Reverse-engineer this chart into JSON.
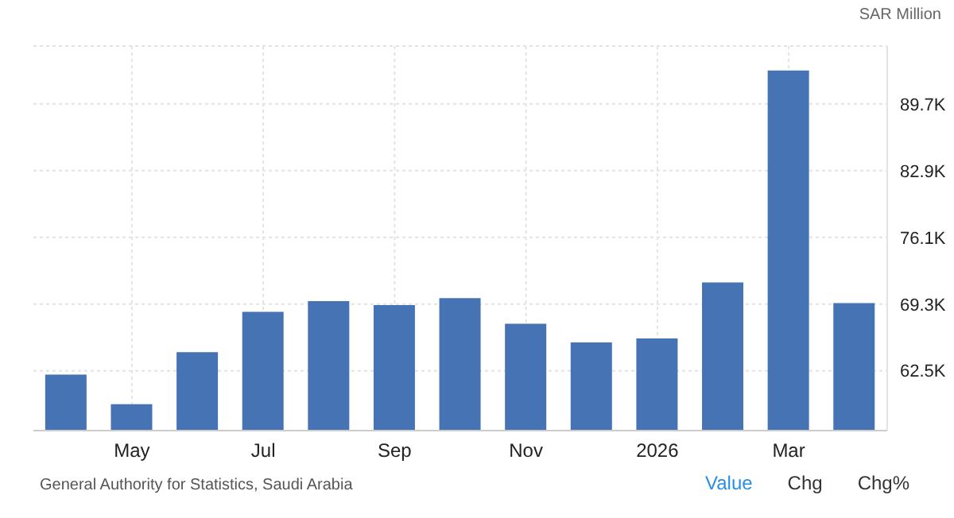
{
  "chart_data": {
    "type": "bar",
    "ylabel": "SAR Million",
    "categories": [
      null,
      "May",
      null,
      "Jul",
      null,
      "Sep",
      null,
      "Nov",
      null,
      "2026",
      null,
      "Mar",
      null
    ],
    "values": [
      62.1,
      59.1,
      64.4,
      68.5,
      69.6,
      69.2,
      69.9,
      67.3,
      65.4,
      65.8,
      71.5,
      93.1,
      69.4
    ],
    "color": "#4673b4",
    "ylim": [
      56.4,
      95.6
    ],
    "yticks": [
      {
        "value": 62.5,
        "label": "62.5K"
      },
      {
        "value": 69.3,
        "label": "69.3K"
      },
      {
        "value": 76.1,
        "label": "76.1K"
      },
      {
        "value": 82.9,
        "label": "82.9K"
      },
      {
        "value": 89.7,
        "label": "89.7K"
      }
    ],
    "grid": true,
    "annotations": [
      "General Authority for Statistics, Saudi Arabia",
      "Value",
      "Chg",
      "Chg%"
    ]
  }
}
